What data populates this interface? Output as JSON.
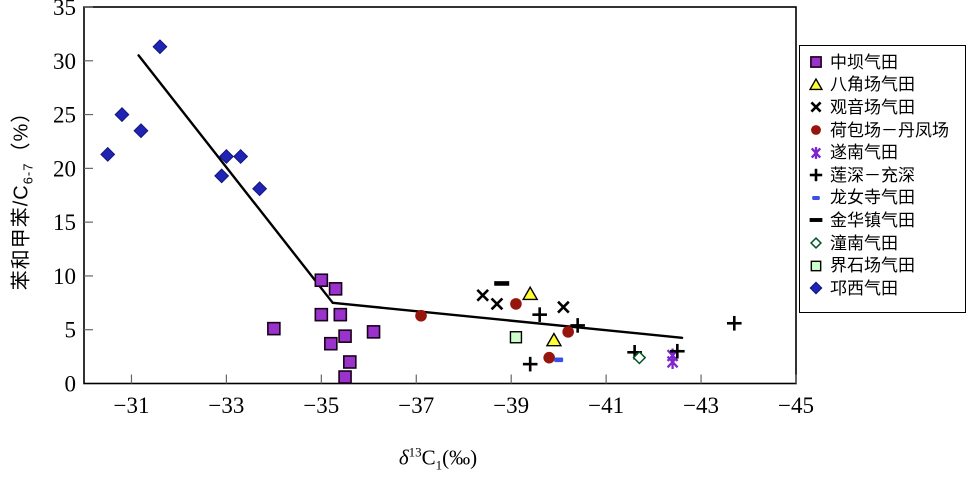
{
  "figure": {
    "background": "#ffffff",
    "axis_titles": {
      "y": {
        "prefix": "苯和甲苯/C",
        "sub": "6-7",
        "suffix": "（%）"
      },
      "x": {
        "delta": "δ",
        "sup": "13",
        "c": "C",
        "sub": "1",
        "suffix": "(‰)"
      }
    }
  },
  "chart_data": {
    "type": "scatter",
    "title": "",
    "xlabel": "δ13C1(‰)",
    "ylabel": "苯和甲苯/C6-7（%）",
    "grid": false,
    "legend_position": "right",
    "x_axis": {
      "range": [
        -30,
        -45
      ],
      "reversed": true,
      "ticks": [
        -31,
        -33,
        -35,
        -37,
        -39,
        -41,
        -43,
        -45
      ],
      "tick_labels": [
        "-31",
        "-33",
        "-35",
        "-37",
        "-39",
        "-41",
        "-43",
        "-45"
      ]
    },
    "y_axis": {
      "range": [
        0,
        35
      ],
      "ticks": [
        0,
        5,
        10,
        15,
        20,
        25,
        30,
        35
      ],
      "tick_labels": [
        "0",
        "5",
        "10",
        "15",
        "20",
        "25",
        "30",
        "35"
      ]
    },
    "series": [
      {
        "name": "中坝气田",
        "marker": "square",
        "color": "#9933CC",
        "points": [
          [
            -35.0,
            9.6
          ],
          [
            -35.3,
            8.8
          ],
          [
            -35.0,
            6.4
          ],
          [
            -35.4,
            6.4
          ],
          [
            -34.0,
            5.1
          ],
          [
            -35.5,
            4.4
          ],
          [
            -35.2,
            3.7
          ],
          [
            -36.1,
            4.8
          ],
          [
            -35.6,
            2.0
          ],
          [
            -35.5,
            0.6
          ]
        ]
      },
      {
        "name": "八角场气田",
        "marker": "triangle",
        "color": "#FFFF33",
        "points": [
          [
            -39.4,
            8.3
          ],
          [
            -39.9,
            4.0
          ]
        ]
      },
      {
        "name": "观音场气田",
        "marker": "xcross",
        "color": "#000000",
        "points": [
          [
            -38.4,
            8.2
          ],
          [
            -38.7,
            7.4
          ],
          [
            -40.1,
            7.1
          ]
        ]
      },
      {
        "name": "荷包场－丹凤场",
        "marker": "circle",
        "color": "#96150C",
        "points": [
          [
            -37.1,
            6.3
          ],
          [
            -39.1,
            7.4
          ],
          [
            -40.2,
            4.8
          ],
          [
            -39.8,
            2.4
          ]
        ]
      },
      {
        "name": "遂南气田",
        "marker": "asterisk",
        "color": "#7D26CD",
        "points": [
          [
            -42.4,
            2.6
          ],
          [
            -42.4,
            2.0
          ]
        ]
      },
      {
        "name": "莲深－充深",
        "marker": "plus",
        "color": "#000000",
        "points": [
          [
            -39.6,
            6.4
          ],
          [
            -40.4,
            5.4
          ],
          [
            -39.4,
            1.8
          ],
          [
            -41.6,
            2.9
          ],
          [
            -42.5,
            3.0
          ],
          [
            -43.7,
            5.6
          ]
        ]
      },
      {
        "name": "龙女寺气田",
        "marker": "dash_small",
        "color": "#3A50E8",
        "points": [
          [
            -40.0,
            2.2
          ]
        ]
      },
      {
        "name": "金华镇气田",
        "marker": "dash",
        "color": "#000000",
        "points": [
          [
            -38.8,
            9.3
          ]
        ]
      },
      {
        "name": "潼南气田",
        "marker": "diamond_open",
        "color": "#ffffff",
        "points": [
          [
            -41.7,
            2.4
          ]
        ]
      },
      {
        "name": "界石场气田",
        "marker": "square_light",
        "color": "#CCFFCC",
        "points": [
          [
            -39.1,
            4.3
          ]
        ]
      },
      {
        "name": "邛西气田",
        "marker": "diamond",
        "color": "#1F24B4",
        "points": [
          [
            -31.6,
            31.3
          ],
          [
            -30.8,
            25.0
          ],
          [
            -31.2,
            23.5
          ],
          [
            -30.5,
            21.3
          ],
          [
            -33.0,
            21.1
          ],
          [
            -33.3,
            21.1
          ],
          [
            -32.9,
            19.3
          ],
          [
            -33.7,
            18.1
          ]
        ]
      }
    ],
    "trend_lines": [
      {
        "points": [
          [
            -31.15,
            30.5
          ],
          [
            -35.24,
            7.5
          ]
        ]
      },
      {
        "points": [
          [
            -35.24,
            7.5
          ],
          [
            -42.6,
            4.25
          ]
        ]
      }
    ]
  }
}
